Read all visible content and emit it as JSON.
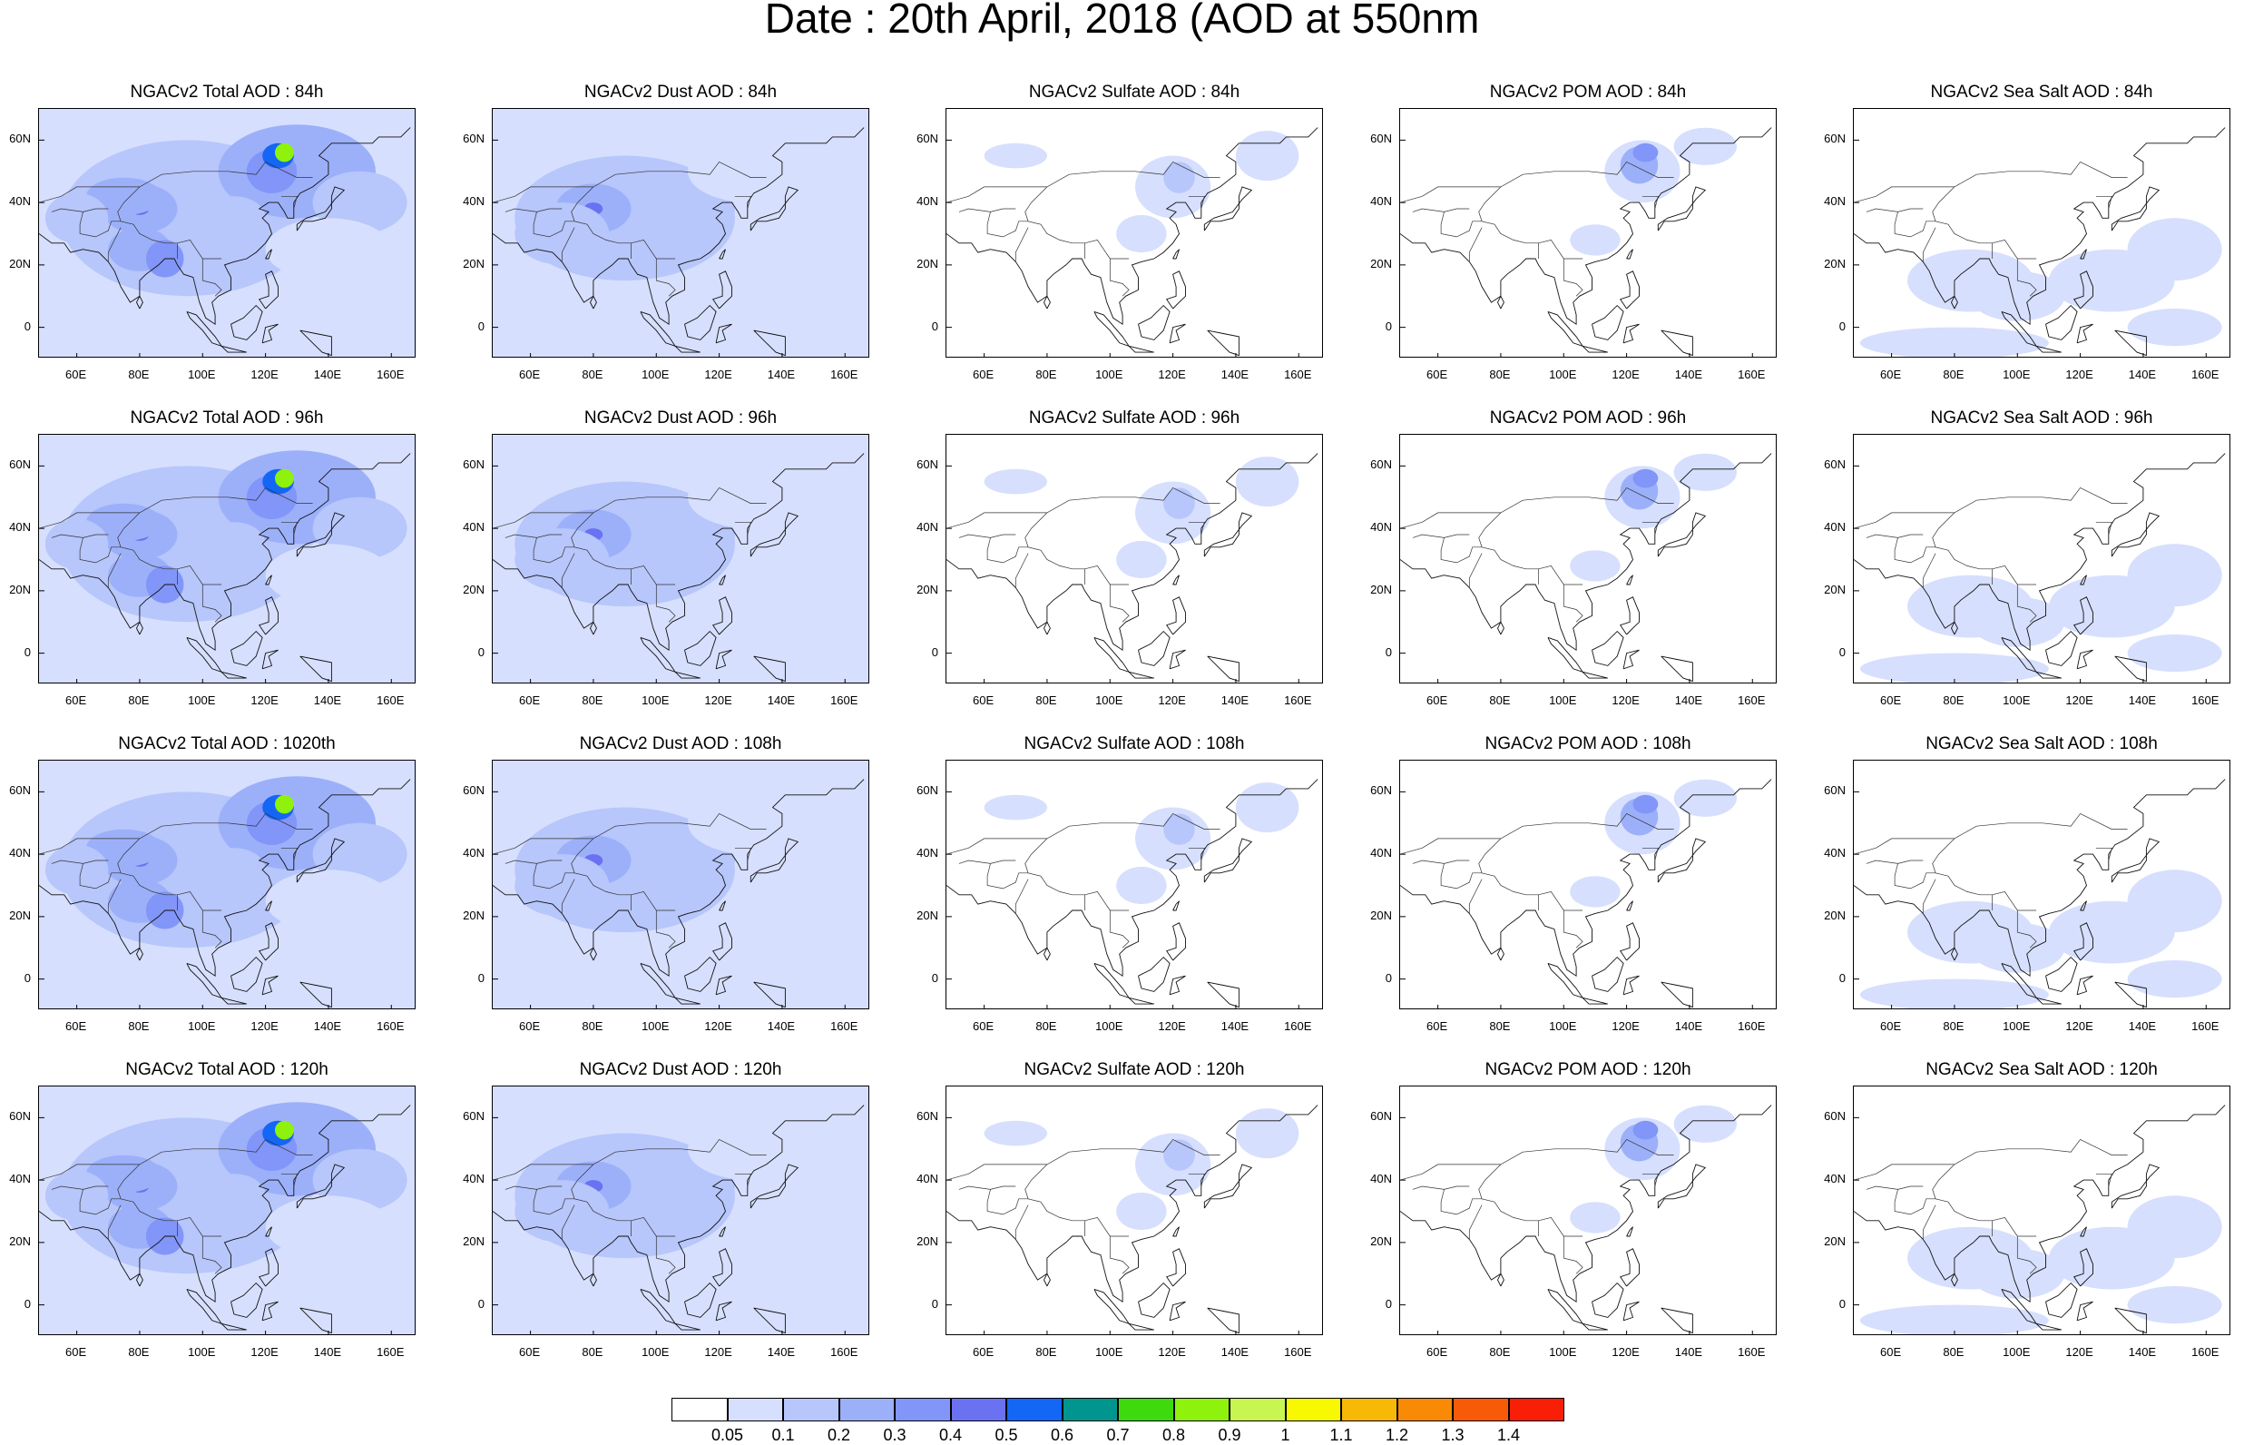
{
  "title": "Date : 20th April, 2018 (AOD at 550nm",
  "lat_labels": [
    "60N",
    "40N",
    "20N",
    "0"
  ],
  "lon_labels": [
    "60E",
    "80E",
    "100E",
    "120E",
    "140E",
    "160E"
  ],
  "panels": [
    {
      "title": "NGACv2 Total AOD : 84h",
      "field": "total"
    },
    {
      "title": "NGACv2 Dust AOD : 84h",
      "field": "dust"
    },
    {
      "title": "NGACv2 Sulfate AOD : 84h",
      "field": "sulfate"
    },
    {
      "title": "NGACv2 POM AOD : 84h",
      "field": "pom"
    },
    {
      "title": "NGACv2 Sea Salt AOD : 84h",
      "field": "seasalt"
    },
    {
      "title": "NGACv2 Total AOD : 96h",
      "field": "total"
    },
    {
      "title": "NGACv2 Dust AOD : 96h",
      "field": "dust"
    },
    {
      "title": "NGACv2 Sulfate AOD : 96h",
      "field": "sulfate"
    },
    {
      "title": "NGACv2 POM AOD : 96h",
      "field": "pom"
    },
    {
      "title": "NGACv2 Sea Salt AOD : 96h",
      "field": "seasalt"
    },
    {
      "title": "NGACv2 Total AOD : 1020th",
      "field": "total"
    },
    {
      "title": "NGACv2 Dust AOD : 108h",
      "field": "dust"
    },
    {
      "title": "NGACv2 Sulfate AOD : 108h",
      "field": "sulfate"
    },
    {
      "title": "NGACv2 POM AOD : 108h",
      "field": "pom"
    },
    {
      "title": "NGACv2 Sea Salt AOD : 108h",
      "field": "seasalt"
    },
    {
      "title": "NGACv2 Total AOD : 120h",
      "field": "total"
    },
    {
      "title": "NGACv2 Dust AOD : 120h",
      "field": "dust"
    },
    {
      "title": "NGACv2 Sulfate AOD : 120h",
      "field": "sulfate"
    },
    {
      "title": "NGACv2 POM AOD : 120h",
      "field": "pom"
    },
    {
      "title": "NGACv2 Sea Salt  AOD : 120h",
      "field": "seasalt"
    }
  ],
  "colorbar": {
    "colors": [
      "#ffffff",
      "#d6dffd",
      "#b7c6fb",
      "#9cb0fa",
      "#8295f8",
      "#6a72f2",
      "#1466f5",
      "#00968f",
      "#3fda0e",
      "#8ef20d",
      "#c8f552",
      "#f8f801",
      "#f8b906",
      "#f88a05",
      "#f85b07",
      "#f81f06"
    ],
    "labels": [
      "0.05",
      "0.1",
      "0.2",
      "0.3",
      "0.4",
      "0.5",
      "0.6",
      "0.7",
      "0.8",
      "0.9",
      "1",
      "1.1",
      "1.2",
      "1.3",
      "1.4"
    ]
  }
}
